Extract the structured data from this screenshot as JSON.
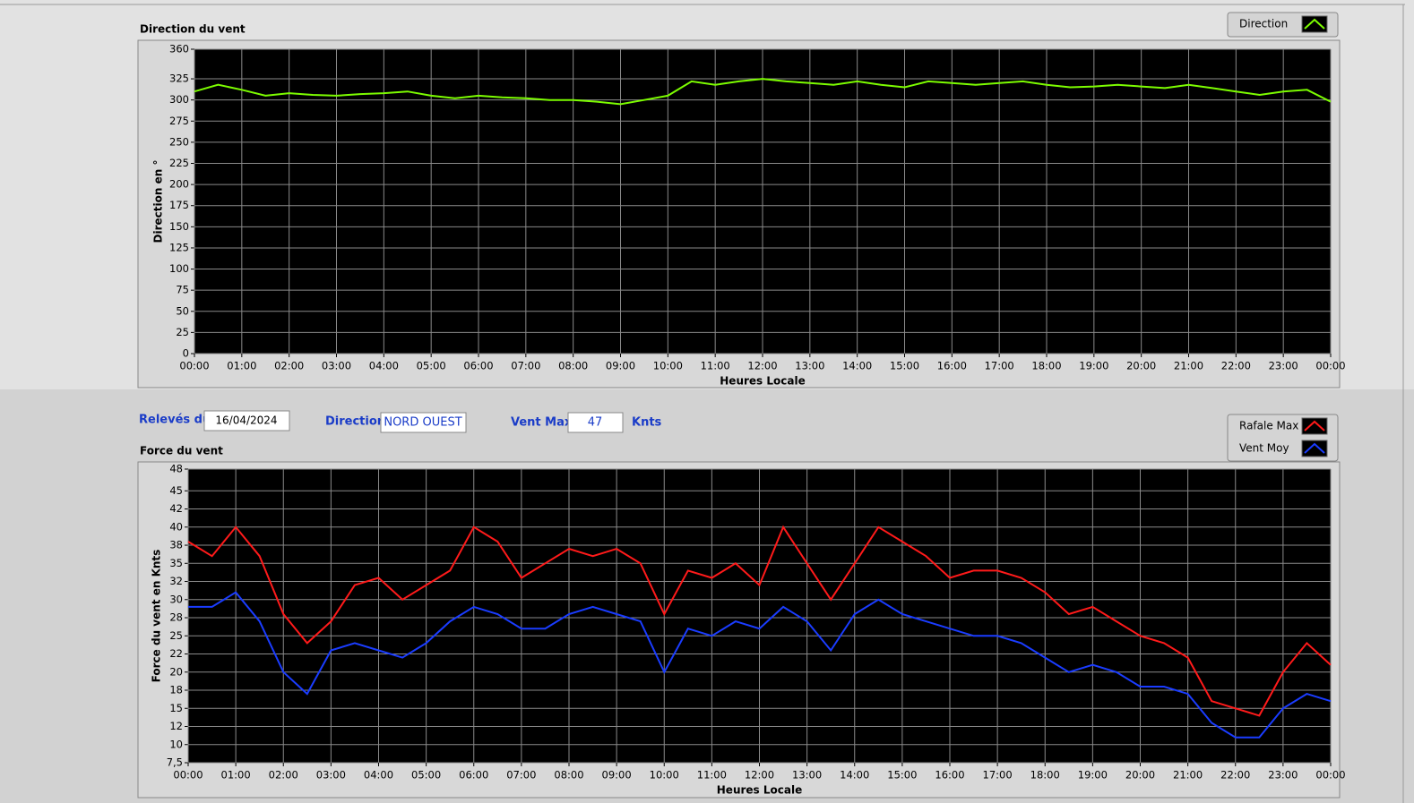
{
  "chart_data": [
    {
      "type": "line",
      "title": "Direction du vent",
      "x_label": "Heures Locale",
      "y_label": "Direction en °",
      "legend": "top-right",
      "grid": true,
      "x": [
        0,
        0.5,
        1,
        1.5,
        2,
        2.5,
        3,
        3.5,
        4,
        4.5,
        5,
        5.5,
        6,
        6.5,
        7,
        7.5,
        8,
        8.5,
        9,
        9.5,
        10,
        10.5,
        11,
        11.5,
        12,
        12.5,
        13,
        13.5,
        14,
        14.5,
        15,
        15.5,
        16,
        16.5,
        17,
        17.5,
        18,
        18.5,
        19,
        19.5,
        20,
        20.5,
        21,
        21.5,
        22,
        22.5,
        23,
        23.5,
        24
      ],
      "series": [
        {
          "name": "Direction",
          "color": "#7cfc00",
          "values": [
            310,
            318,
            312,
            305,
            308,
            306,
            305,
            307,
            308,
            310,
            305,
            302,
            305,
            303,
            302,
            300,
            300,
            298,
            295,
            300,
            305,
            322,
            318,
            322,
            325,
            322,
            320,
            318,
            322,
            318,
            315,
            322,
            320,
            318,
            320,
            322,
            318,
            315,
            316,
            318,
            316,
            314,
            318,
            314,
            310,
            306,
            310,
            312,
            298
          ]
        }
      ],
      "xlim": [
        0,
        24
      ],
      "xticks": [
        {
          "value": 0,
          "label": "00:00"
        },
        {
          "value": 1,
          "label": "01:00"
        },
        {
          "value": 2,
          "label": "02:00"
        },
        {
          "value": 3,
          "label": "03:00"
        },
        {
          "value": 4,
          "label": "04:00"
        },
        {
          "value": 5,
          "label": "05:00"
        },
        {
          "value": 6,
          "label": "06:00"
        },
        {
          "value": 7,
          "label": "07:00"
        },
        {
          "value": 8,
          "label": "08:00"
        },
        {
          "value": 9,
          "label": "09:00"
        },
        {
          "value": 10,
          "label": "10:00"
        },
        {
          "value": 11,
          "label": "11:00"
        },
        {
          "value": 12,
          "label": "12:00"
        },
        {
          "value": 13,
          "label": "13:00"
        },
        {
          "value": 14,
          "label": "14:00"
        },
        {
          "value": 15,
          "label": "15:00"
        },
        {
          "value": 16,
          "label": "16:00"
        },
        {
          "value": 17,
          "label": "17:00"
        },
        {
          "value": 18,
          "label": "18:00"
        },
        {
          "value": 19,
          "label": "19:00"
        },
        {
          "value": 20,
          "label": "20:00"
        },
        {
          "value": 21,
          "label": "21:00"
        },
        {
          "value": 22,
          "label": "22:00"
        },
        {
          "value": 23,
          "label": "23:00"
        },
        {
          "value": 24,
          "label": "00:00"
        }
      ],
      "ylim": [
        0,
        360
      ],
      "yticks": [
        0,
        25,
        50,
        75,
        100,
        125,
        150,
        175,
        200,
        225,
        250,
        275,
        300,
        325,
        360
      ]
    },
    {
      "type": "line",
      "title": "Force du vent",
      "x_label": "Heures Locale",
      "y_label": "Force du vent en Knts",
      "legend": "top-right",
      "grid": true,
      "x": [
        0,
        0.5,
        1,
        1.5,
        2,
        2.5,
        3,
        3.5,
        4,
        4.5,
        5,
        5.5,
        6,
        6.5,
        7,
        7.5,
        8,
        8.5,
        9,
        9.5,
        10,
        10.5,
        11,
        11.5,
        12,
        12.5,
        13,
        13.5,
        14,
        14.5,
        15,
        15.5,
        16,
        16.5,
        17,
        17.5,
        18,
        18.5,
        19,
        19.5,
        20,
        20.5,
        21,
        21.5,
        22,
        22.5,
        23,
        23.5,
        24
      ],
      "series": [
        {
          "name": "Rafale Max",
          "color": "#ff1a1a",
          "values": [
            38,
            36,
            40,
            36,
            28,
            24,
            27,
            32,
            33,
            30,
            32,
            34,
            40,
            38,
            33,
            35,
            37,
            36,
            37,
            35,
            28,
            34,
            33,
            35,
            32,
            40,
            35,
            30,
            35,
            40,
            38,
            36,
            33,
            34,
            34,
            33,
            31,
            28,
            29,
            27,
            25,
            24,
            22,
            16,
            15,
            14,
            20,
            24,
            21
          ]
        },
        {
          "name": "Vent Moy",
          "color": "#1a3cff",
          "values": [
            29,
            29,
            31,
            27,
            20,
            17,
            23,
            24,
            23,
            22,
            24,
            27,
            29,
            28,
            26,
            26,
            28,
            29,
            28,
            27,
            20,
            26,
            25,
            27,
            26,
            29,
            27,
            23,
            28,
            30,
            28,
            27,
            26,
            25,
            25,
            24,
            22,
            20,
            21,
            20,
            18,
            18,
            17,
            13,
            11,
            11,
            15,
            17,
            16
          ]
        }
      ],
      "xlim": [
        0,
        24
      ],
      "xticks": [
        {
          "value": 0,
          "label": "00:00"
        },
        {
          "value": 1,
          "label": "01:00"
        },
        {
          "value": 2,
          "label": "02:00"
        },
        {
          "value": 3,
          "label": "03:00"
        },
        {
          "value": 4,
          "label": "04:00"
        },
        {
          "value": 5,
          "label": "05:00"
        },
        {
          "value": 6,
          "label": "06:00"
        },
        {
          "value": 7,
          "label": "07:00"
        },
        {
          "value": 8,
          "label": "08:00"
        },
        {
          "value": 9,
          "label": "09:00"
        },
        {
          "value": 10,
          "label": "10:00"
        },
        {
          "value": 11,
          "label": "11:00"
        },
        {
          "value": 12,
          "label": "12:00"
        },
        {
          "value": 13,
          "label": "13:00"
        },
        {
          "value": 14,
          "label": "14:00"
        },
        {
          "value": 15,
          "label": "15:00"
        },
        {
          "value": 16,
          "label": "16:00"
        },
        {
          "value": 17,
          "label": "17:00"
        },
        {
          "value": 18,
          "label": "18:00"
        },
        {
          "value": 19,
          "label": "19:00"
        },
        {
          "value": 20,
          "label": "20:00"
        },
        {
          "value": 21,
          "label": "21:00"
        },
        {
          "value": 22,
          "label": "22:00"
        },
        {
          "value": 23,
          "label": "23:00"
        },
        {
          "value": 24,
          "label": "00:00"
        }
      ],
      "ylim": [
        7.5,
        48
      ],
      "yticks": [
        {
          "value": 7.5,
          "label": "7,5"
        },
        10,
        {
          "value": 12.5,
          "label": "12"
        },
        15,
        {
          "value": 17.5,
          "label": "18"
        },
        20,
        {
          "value": 22.5,
          "label": "22"
        },
        25,
        {
          "value": 27.5,
          "label": "28"
        },
        30,
        {
          "value": 32.5,
          "label": "32"
        },
        35,
        {
          "value": 37.5,
          "label": "38"
        },
        40,
        {
          "value": 42.5,
          "label": "42"
        },
        45,
        48
      ]
    }
  ],
  "form": {
    "date_label": "Relevés du",
    "date": "16/04/2024",
    "direction_label": "Direction",
    "direction": "NORD OUEST",
    "max_label": "Vent Max",
    "max": "47",
    "unit": "Knts"
  }
}
